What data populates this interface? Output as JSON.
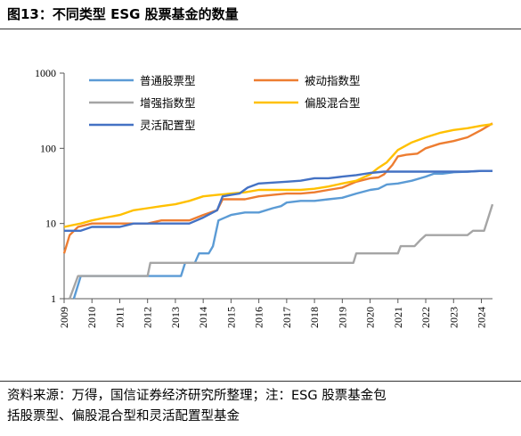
{
  "figure": {
    "title": "图13：不同类型 ESG 股票基金的数量",
    "note_line1": "资料来源：万得，国信证券经济研究所整理；注：ESG 股票基金包",
    "note_line2": "括股票型、偏股混合型和灵活配置型基金"
  },
  "chart_data": {
    "type": "line",
    "title": "",
    "xlabel": "",
    "ylabel": "",
    "y_scale": "log",
    "ylim": [
      1,
      1000
    ],
    "xlim": [
      2009,
      2024.4
    ],
    "y_ticks": [
      "1",
      "10",
      "100",
      "1000"
    ],
    "x_ticks": [
      "2009",
      "2010",
      "2011",
      "2012",
      "2013",
      "2014",
      "2015",
      "2016",
      "2017",
      "2018",
      "2019",
      "2020",
      "2021",
      "2022",
      "2023",
      "2024"
    ],
    "grid": false,
    "legend": "top-left, two columns",
    "series": [
      {
        "name": "普通股票型",
        "color": "#5b9bd5",
        "points": [
          [
            2009.35,
            1
          ],
          [
            2009.6,
            2
          ],
          [
            2010,
            2
          ],
          [
            2012,
            2
          ],
          [
            2013.2,
            2
          ],
          [
            2013.35,
            3
          ],
          [
            2013.7,
            3
          ],
          [
            2013.85,
            4
          ],
          [
            2014.2,
            4
          ],
          [
            2014.35,
            5
          ],
          [
            2014.55,
            11
          ],
          [
            2015,
            13
          ],
          [
            2015.5,
            14
          ],
          [
            2016,
            14
          ],
          [
            2016.5,
            16
          ],
          [
            2016.8,
            17
          ],
          [
            2017,
            19
          ],
          [
            2017.5,
            20
          ],
          [
            2018,
            20
          ],
          [
            2018.5,
            21
          ],
          [
            2019,
            22
          ],
          [
            2019.5,
            25
          ],
          [
            2020,
            28
          ],
          [
            2020.3,
            29
          ],
          [
            2020.6,
            33
          ],
          [
            2021,
            34
          ],
          [
            2021.5,
            37
          ],
          [
            2022,
            42
          ],
          [
            2022.3,
            46
          ],
          [
            2022.6,
            46
          ],
          [
            2023,
            48
          ],
          [
            2023.5,
            49
          ],
          [
            2024,
            50
          ],
          [
            2024.4,
            50
          ]
        ]
      },
      {
        "name": "被动指数型",
        "color": "#ed7d31",
        "points": [
          [
            2009,
            4
          ],
          [
            2009.2,
            7
          ],
          [
            2009.5,
            9
          ],
          [
            2010,
            10
          ],
          [
            2010.5,
            10
          ],
          [
            2011,
            10
          ],
          [
            2012,
            10
          ],
          [
            2012.5,
            11
          ],
          [
            2013,
            11
          ],
          [
            2013.5,
            11
          ],
          [
            2014,
            13
          ],
          [
            2014.5,
            15
          ],
          [
            2014.7,
            21
          ],
          [
            2015,
            21
          ],
          [
            2015.5,
            21
          ],
          [
            2016,
            23
          ],
          [
            2016.5,
            24
          ],
          [
            2017,
            25
          ],
          [
            2017.5,
            25
          ],
          [
            2018,
            26
          ],
          [
            2018.5,
            28
          ],
          [
            2019,
            30
          ],
          [
            2019.5,
            36
          ],
          [
            2020,
            40
          ],
          [
            2020.3,
            41
          ],
          [
            2020.5,
            45
          ],
          [
            2020.8,
            60
          ],
          [
            2021,
            78
          ],
          [
            2021.3,
            82
          ],
          [
            2021.7,
            85
          ],
          [
            2022,
            100
          ],
          [
            2022.5,
            115
          ],
          [
            2023,
            125
          ],
          [
            2023.5,
            140
          ],
          [
            2024,
            175
          ],
          [
            2024.4,
            215
          ]
        ]
      },
      {
        "name": "增强指数型",
        "color": "#a5a5a5",
        "points": [
          [
            2009.2,
            1
          ],
          [
            2009.5,
            2
          ],
          [
            2010,
            2
          ],
          [
            2011,
            2
          ],
          [
            2012,
            2
          ],
          [
            2012.1,
            3
          ],
          [
            2013,
            3
          ],
          [
            2014,
            3
          ],
          [
            2015,
            3
          ],
          [
            2016,
            3
          ],
          [
            2017,
            3
          ],
          [
            2018,
            3
          ],
          [
            2019,
            3
          ],
          [
            2019.4,
            3
          ],
          [
            2019.5,
            4
          ],
          [
            2020,
            4
          ],
          [
            2020.5,
            4
          ],
          [
            2021,
            4
          ],
          [
            2021.1,
            5
          ],
          [
            2021.6,
            5
          ],
          [
            2021.8,
            6
          ],
          [
            2022,
            7
          ],
          [
            2022.5,
            7
          ],
          [
            2023,
            7
          ],
          [
            2023.5,
            7
          ],
          [
            2023.7,
            8
          ],
          [
            2024.1,
            8
          ],
          [
            2024.4,
            18
          ]
        ]
      },
      {
        "name": "偏股混合型",
        "color": "#ffc000",
        "points": [
          [
            2009,
            9
          ],
          [
            2009.3,
            9.5
          ],
          [
            2009.6,
            10
          ],
          [
            2010,
            11
          ],
          [
            2010.5,
            12
          ],
          [
            2011,
            13
          ],
          [
            2011.5,
            15
          ],
          [
            2012,
            16
          ],
          [
            2012.5,
            17
          ],
          [
            2013,
            18
          ],
          [
            2013.5,
            20
          ],
          [
            2014,
            23
          ],
          [
            2014.5,
            24
          ],
          [
            2015,
            25
          ],
          [
            2015.5,
            26
          ],
          [
            2016,
            28
          ],
          [
            2016.5,
            28
          ],
          [
            2017,
            28
          ],
          [
            2017.5,
            28
          ],
          [
            2018,
            29
          ],
          [
            2018.5,
            31
          ],
          [
            2019,
            34
          ],
          [
            2019.5,
            37
          ],
          [
            2020,
            45
          ],
          [
            2020.3,
            55
          ],
          [
            2020.6,
            65
          ],
          [
            2021,
            95
          ],
          [
            2021.5,
            120
          ],
          [
            2022,
            140
          ],
          [
            2022.5,
            160
          ],
          [
            2023,
            175
          ],
          [
            2023.5,
            185
          ],
          [
            2024,
            200
          ],
          [
            2024.4,
            210
          ]
        ]
      },
      {
        "name": "灵活配置型",
        "color": "#4472c4",
        "points": [
          [
            2009,
            8
          ],
          [
            2009.3,
            8
          ],
          [
            2009.6,
            8
          ],
          [
            2010,
            9
          ],
          [
            2010.5,
            9
          ],
          [
            2011,
            9
          ],
          [
            2011.5,
            10
          ],
          [
            2012,
            10
          ],
          [
            2012.5,
            10
          ],
          [
            2013,
            10
          ],
          [
            2013.5,
            10
          ],
          [
            2014,
            12
          ],
          [
            2014.5,
            15
          ],
          [
            2014.7,
            23
          ],
          [
            2015,
            24
          ],
          [
            2015.3,
            25
          ],
          [
            2015.6,
            30
          ],
          [
            2016,
            34
          ],
          [
            2016.5,
            35
          ],
          [
            2017,
            36
          ],
          [
            2017.5,
            37
          ],
          [
            2018,
            40
          ],
          [
            2018.5,
            40
          ],
          [
            2019,
            42
          ],
          [
            2019.5,
            44
          ],
          [
            2020,
            47
          ],
          [
            2020.5,
            49
          ],
          [
            2021,
            49
          ],
          [
            2021.5,
            49
          ],
          [
            2022,
            49
          ],
          [
            2022.5,
            49
          ],
          [
            2023,
            49
          ],
          [
            2023.5,
            49
          ],
          [
            2024,
            50
          ],
          [
            2024.4,
            50
          ]
        ]
      }
    ]
  }
}
